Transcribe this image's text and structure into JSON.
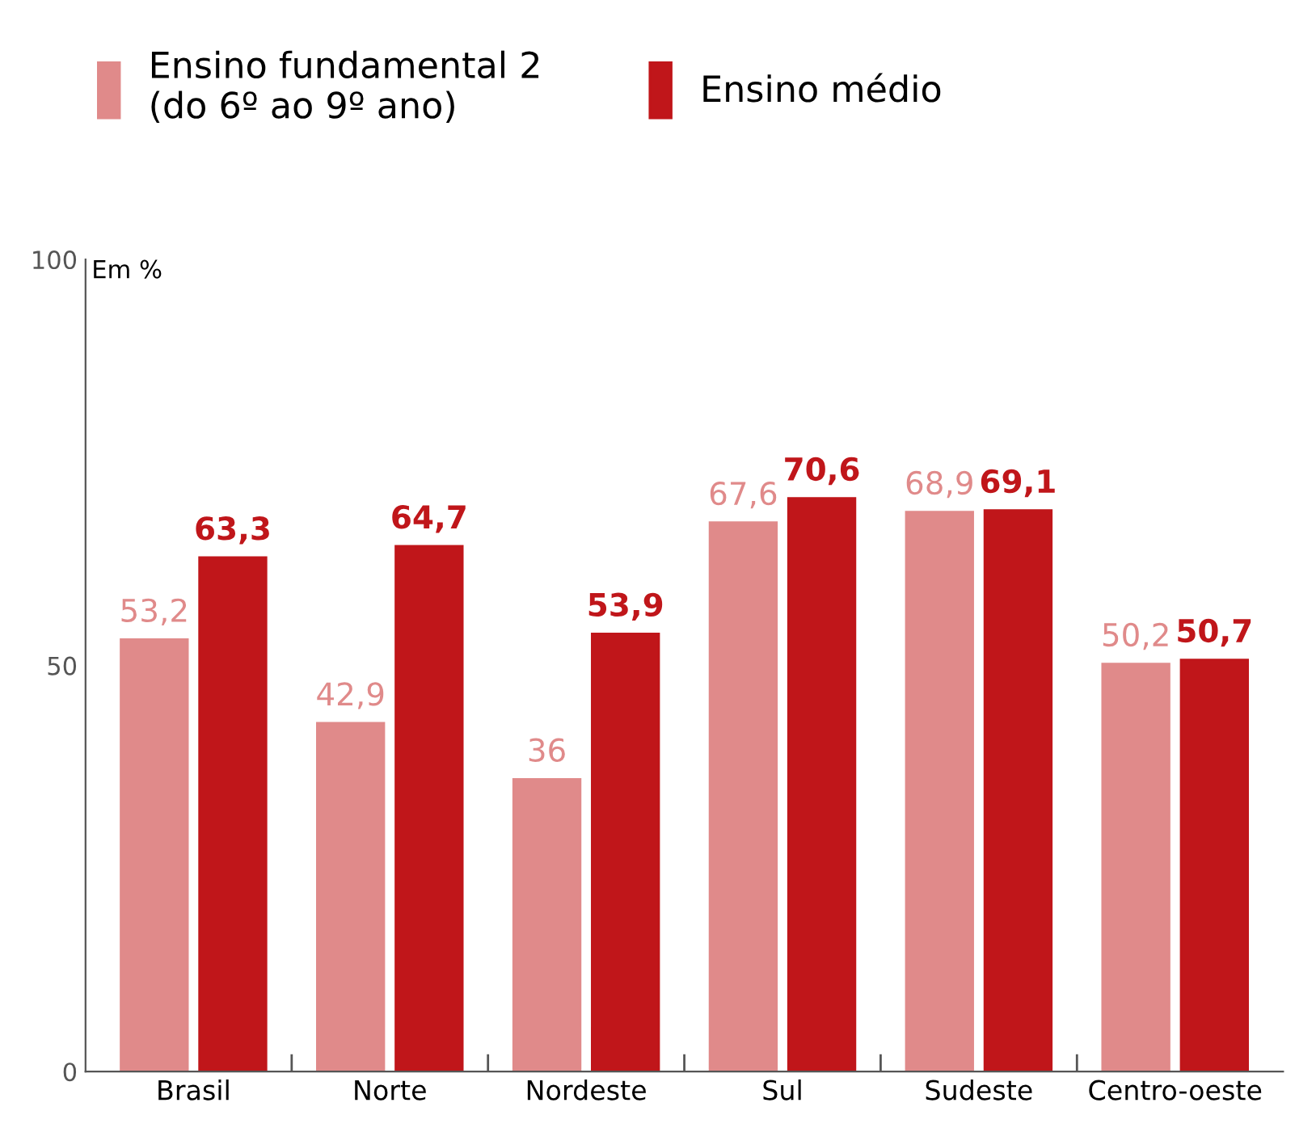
{
  "chart_data": {
    "type": "bar",
    "ylabel": "Em %",
    "categories": [
      "Brasil",
      "Norte",
      "Nordeste",
      "Sul",
      "Sudeste",
      "Centro-oeste"
    ],
    "series": [
      {
        "name": "Ensino fundamental 2\n(do 6º ao 9º ano)",
        "color": "#e08a8a",
        "values": [
          53.2,
          42.9,
          36,
          67.6,
          68.9,
          50.2
        ],
        "value_labels": [
          "53,2",
          "42,9",
          "36",
          "67,6",
          "68,9",
          "50,2"
        ]
      },
      {
        "name": "Ensino médio",
        "color": "#c0161a",
        "values": [
          63.3,
          64.7,
          53.9,
          70.6,
          69.1,
          50.7
        ],
        "value_labels": [
          "63,3",
          "64,7",
          "53,9",
          "70,6",
          "69,1",
          "50,7"
        ]
      }
    ],
    "ylim": [
      0,
      100
    ],
    "yticks": [
      0,
      50,
      100
    ],
    "grid": false,
    "legend": "top left"
  }
}
